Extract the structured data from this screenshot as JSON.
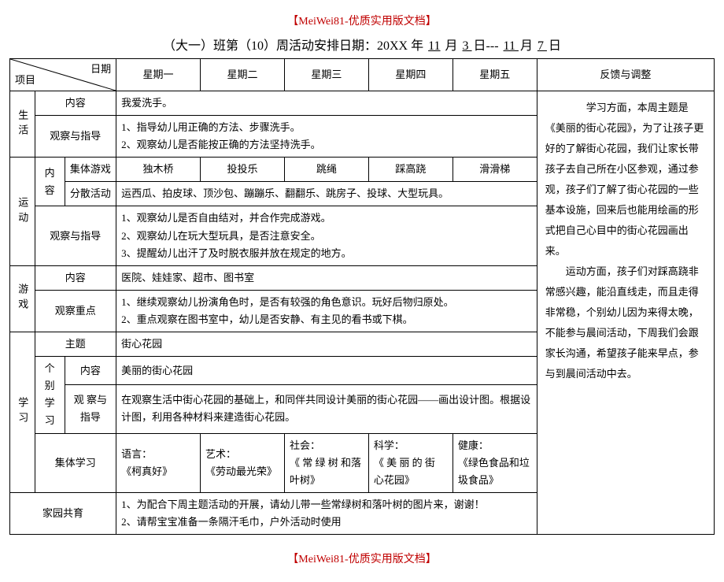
{
  "header_tag": "【MeiWei81-优质实用版文档】",
  "footer_tag": "【MeiWei81-优质实用版文档】",
  "title_prefix": "（大一）班第（10）周活动安排日期：20XX 年",
  "title_m1": "11",
  "title_txt_month": " 月",
  "title_d1": " 3 ",
  "title_txt_day_dash": "日---",
  "title_m2": " 11 ",
  "title_txt_month2": "月",
  "title_d2": " 7 ",
  "title_txt_day": "日",
  "diag_top": "日期",
  "diag_bottom": "项目",
  "weekdays": {
    "mon": "星期一",
    "tue": "星期二",
    "wed": "星期三",
    "thu": "星期四",
    "fri": "星期五"
  },
  "feedback_label": "反馈与调整",
  "feedback_text": "　　学习方面，本周主题是《美丽的街心花园》，为了让孩子更好的了解街心花园，我们让家长带孩子去自己所在小区参观，通过参观，孩子们了解了街心花园的一些基本设施，回来后也能用绘画的形式把自己心目中的街心花园画出来。\n　　运动方面，孩子们对踩高跷非常感兴趣，能沿直线走，而且走得非常稳，个别幼儿因为来得太晚，不能参与晨间活动，下周我们会跟家长沟通，希望孩子能来早点，参与到晨间活动中去。",
  "life": {
    "label": "生活",
    "content_label": "内容",
    "content_text": "我爱洗手。",
    "guide_label": "观察与指导",
    "guide_text": "1、指导幼儿用正确的方法、步骤洗手。\n2、观察幼儿是否能按正确的方法坚持洗手。"
  },
  "sport": {
    "label": "运动",
    "inner_label": "内容",
    "group_label": "集体游戏",
    "group": {
      "mon": "独木桥",
      "tue": "投投乐",
      "wed": "跳绳",
      "thu": "踩高跷",
      "fri": "滑滑梯"
    },
    "scatter_label": "分散活动",
    "scatter_text": "运西瓜、拍皮球、顶沙包、蹦蹦乐、翻翻乐、跳房子、投球、大型玩具。",
    "guide_label": "观察与指导",
    "guide_text": "1、观察幼儿是否自由结对，并合作完成游戏。\n2、观察幼儿在玩大型玩具，是否注意安全。\n3、提醒幼儿出汗了及时脱衣服并放在规定的地方。"
  },
  "game": {
    "label": "游戏",
    "content_label": "内容",
    "content_text": "医院、娃娃家、超市、图书室",
    "focus_label": "观察重点",
    "focus_text": "1、继续观察幼儿扮演角色时，是否有较强的角色意识。玩好后物归原处。\n2、重点观察在图书室中，幼儿是否安静、有主见的看书或下棋。"
  },
  "study": {
    "label": "学习",
    "theme_label": "主题",
    "theme_text": "街心花园",
    "individual_label": "个别学习",
    "ind_content_label": "内容",
    "ind_content_text": "美丽的街心花园",
    "ind_guide_label": "观 察与 指导",
    "ind_guide_text": "在观察生活中街心花园的基础上，和同伴共同设计美丽的街心花园——画出设计图。根据设计图，利用各种材料来建造街心花园。",
    "collective_label": "集体学习",
    "collective": {
      "mon": "语言：\n《柯真好》",
      "tue": "艺术：\n《劳动最光荣》",
      "wed": "社会：\n《 常 绿 树 和落叶树》",
      "thu": "科学：\n《 美 丽 的 街 心花园》",
      "fri": "健康：\n《绿色食品和垃圾食品》"
    }
  },
  "home": {
    "label": "家园共育",
    "text": "1、为配合下周主题活动的开展，请幼儿带一些常绿树和落叶树的图片来，谢谢！\n2、请帮宝宝准备一条隔汗毛巾，户外活动时使用"
  }
}
